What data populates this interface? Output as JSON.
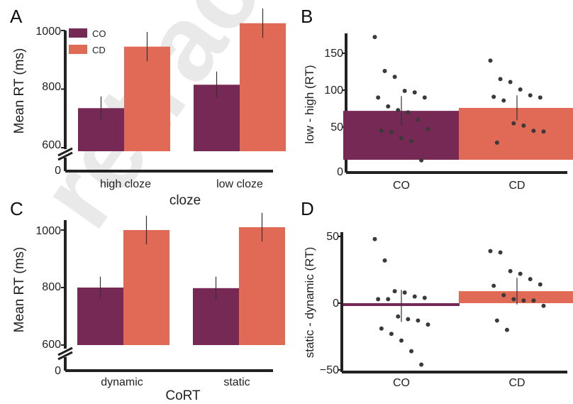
{
  "watermark": "retracted",
  "colors": {
    "CO": "#772955",
    "CD": "#e06a55"
  },
  "chart_data": [
    {
      "panel": "A",
      "type": "bar",
      "ylabel": "Mean RT (ms)",
      "xlabel": "cloze",
      "categories": [
        "high cloze",
        "low cloze"
      ],
      "series": [
        {
          "name": "CO",
          "values": [
            735,
            815
          ],
          "err": [
            40,
            45
          ]
        },
        {
          "name": "CD",
          "values": [
            945,
            1025
          ],
          "err": [
            50,
            50
          ]
        }
      ],
      "yticks": [
        "1000",
        "800",
        "600",
        "0"
      ],
      "axis_break": true,
      "legend": "top-left"
    },
    {
      "panel": "B",
      "type": "bar",
      "ylabel": "low - high (RT)",
      "xlabel": "",
      "categories": [
        "CO",
        "CD"
      ],
      "values": [
        72,
        76
      ],
      "err": [
        20,
        17
      ],
      "yticks": [
        "150",
        "100",
        "50",
        "0"
      ],
      "points": {
        "CO": [
          172,
          126,
          118,
          99,
          97,
          90,
          90,
          78,
          73,
          70,
          60,
          47,
          45,
          43,
          35,
          31,
          5
        ],
        "CD": [
          140,
          115,
          111,
          101,
          93,
          90,
          91,
          86,
          55,
          52,
          45,
          44,
          29
        ]
      }
    },
    {
      "panel": "C",
      "type": "bar",
      "ylabel": "Mean RT (ms)",
      "xlabel": "CoRT",
      "categories": [
        "dynamic",
        "static"
      ],
      "series": [
        {
          "name": "CO",
          "values": [
            800,
            798
          ],
          "err": [
            38,
            40
          ]
        },
        {
          "name": "CD",
          "values": [
            1000,
            1010
          ],
          "err": [
            50,
            50
          ]
        }
      ],
      "yticks": [
        "1000",
        "800",
        "600",
        "0"
      ],
      "axis_break": true
    },
    {
      "panel": "D",
      "type": "bar",
      "ylabel": "static - dynamic (RT)",
      "xlabel": "",
      "categories": [
        "CO",
        "CD"
      ],
      "values": [
        -2,
        9
      ],
      "err": [
        12,
        10
      ],
      "yticks": [
        "50",
        "0",
        "−50"
      ],
      "points": {
        "CO": [
          48,
          32,
          9,
          8,
          5,
          4,
          3,
          3,
          -10,
          -12,
          -13,
          -16,
          -19,
          -23,
          -28,
          -36,
          -46
        ],
        "CD": [
          39,
          38,
          24,
          22,
          18,
          14,
          13,
          6,
          3,
          2,
          2,
          -2,
          -13,
          -20
        ]
      }
    }
  ]
}
